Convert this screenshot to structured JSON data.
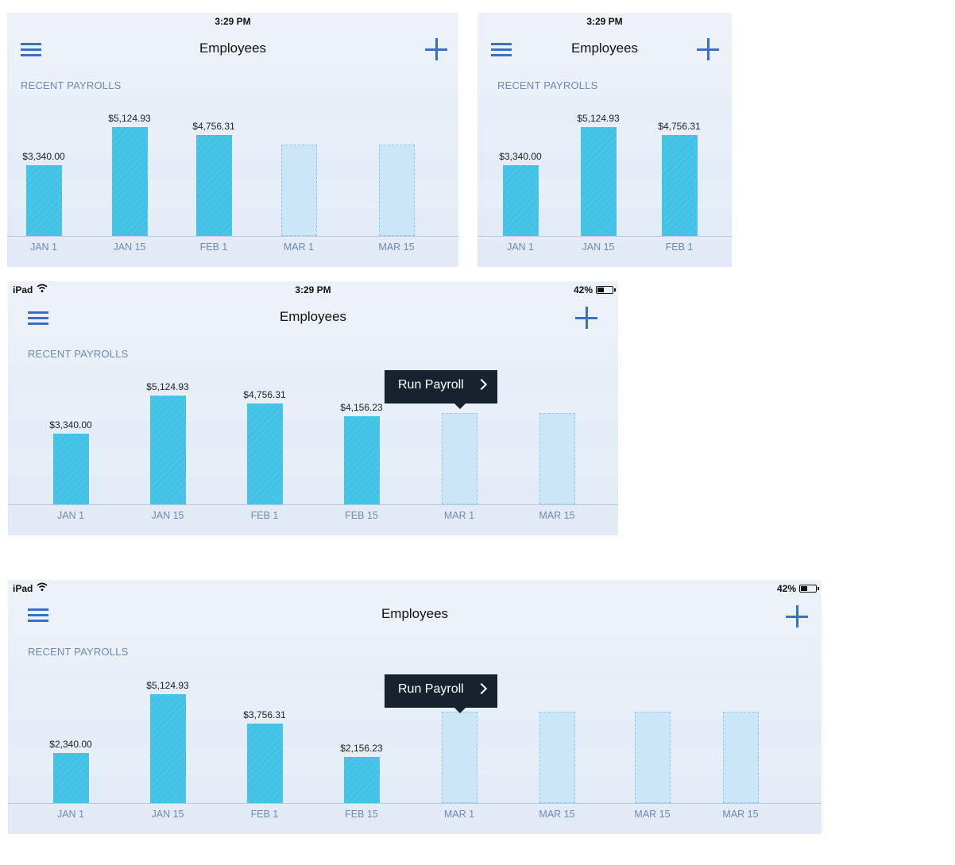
{
  "screens": [
    {
      "time": "3:29 PM",
      "title": "Employees",
      "section_label": "RECENT PAYROLLS",
      "chart_data": {
        "type": "bar",
        "categories": [
          "JAN 1",
          "JAN 15",
          "FEB 1",
          "MAR 1",
          "MAR 15"
        ],
        "values": [
          3340.0,
          5124.93,
          4756.31,
          null,
          null
        ],
        "value_labels": [
          "$3,340.00",
          "$5,124.93",
          "$4,756.31",
          "",
          ""
        ],
        "status": [
          "paid",
          "paid",
          "paid",
          "upcoming",
          "upcoming"
        ],
        "ylim": [
          0,
          6000
        ]
      }
    },
    {
      "time": "3:29 PM",
      "title": "Employees",
      "section_label": "RECENT PAYROLLS",
      "chart_data": {
        "type": "bar",
        "categories": [
          "JAN 1",
          "JAN 15",
          "FEB 1"
        ],
        "values": [
          3340.0,
          5124.93,
          4756.31
        ],
        "value_labels": [
          "$3,340.00",
          "$5,124.93",
          "$4,756.31"
        ],
        "status": [
          "paid",
          "paid",
          "paid"
        ],
        "ylim": [
          0,
          6000
        ]
      }
    },
    {
      "device": "iPad",
      "time": "3:29 PM",
      "battery": "42%",
      "title": "Employees",
      "section_label": "RECENT PAYROLLS",
      "tooltip": "Run Payroll",
      "chart_data": {
        "type": "bar",
        "categories": [
          "JAN 1",
          "JAN 15",
          "FEB 1",
          "FEB 15",
          "MAR 1",
          "MAR 15"
        ],
        "values": [
          3340.0,
          5124.93,
          4756.31,
          4156.23,
          null,
          null
        ],
        "value_labels": [
          "$3,340.00",
          "$5,124.93",
          "$4,756.31",
          "$4,156.23",
          "",
          ""
        ],
        "status": [
          "paid",
          "paid",
          "paid",
          "paid",
          "upcoming",
          "upcoming"
        ],
        "ylim": [
          0,
          6000
        ]
      }
    },
    {
      "device": "iPad",
      "battery": "42%",
      "title": "Employees",
      "section_label": "RECENT PAYROLLS",
      "tooltip": "Run Payroll",
      "chart_data": {
        "type": "bar",
        "categories": [
          "JAN 1",
          "JAN 15",
          "FEB 1",
          "FEB 15",
          "MAR 1",
          "MAR 15",
          "MAR 15",
          "MAR 15"
        ],
        "values": [
          2340.0,
          5124.93,
          3756.31,
          2156.23,
          null,
          null,
          null,
          null
        ],
        "value_labels": [
          "$2,340.00",
          "$5,124.93",
          "$3,756.31",
          "$2,156.23",
          "",
          "",
          "",
          ""
        ],
        "status": [
          "paid",
          "paid",
          "paid",
          "paid",
          "upcoming",
          "upcoming",
          "upcoming",
          "upcoming"
        ],
        "ylim": [
          0,
          6000
        ]
      }
    }
  ],
  "colors": {
    "accent": "#3b6fc4",
    "bar": "#45c3e6",
    "bar_future": "#cbe6f6",
    "label": "#6e8aad",
    "tooltip_bg": "#17222e"
  }
}
